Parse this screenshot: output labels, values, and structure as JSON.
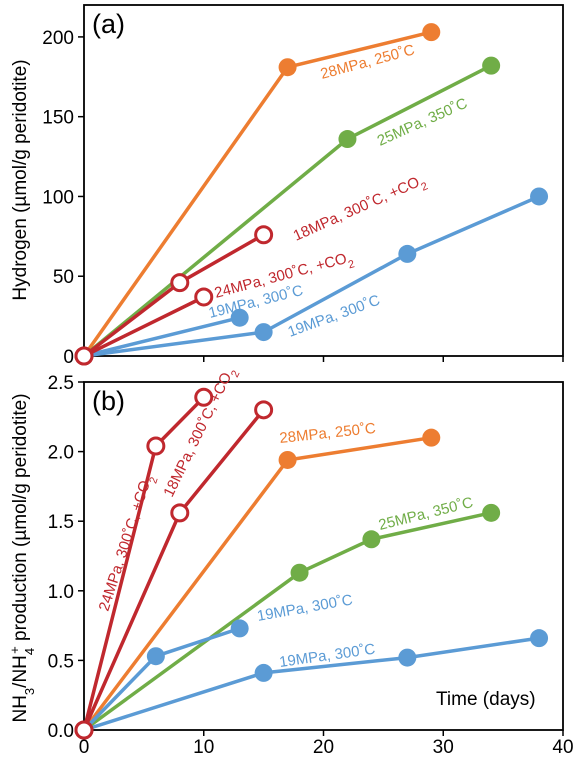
{
  "colors": {
    "orange": "#ED7D31",
    "green": "#70AD47",
    "blue": "#5B9BD5",
    "red": "#C0282E"
  },
  "chart_data": [
    {
      "type": "line",
      "panel_label": "(a)",
      "ylabel": "Hydrogen (µmol/g peridotite)",
      "xlabel": "",
      "xlim": [
        0,
        40
      ],
      "ylim": [
        0,
        220
      ],
      "yticks": [
        "0",
        "50",
        "100",
        "150",
        "200"
      ],
      "series": [
        {
          "name": "28MPa, 250˚C",
          "color": "#ED7D31",
          "filled": true,
          "x": [
            0,
            17,
            29
          ],
          "y": [
            0,
            181,
            203
          ]
        },
        {
          "name": "25MPa, 350˚C",
          "color": "#70AD47",
          "filled": true,
          "x": [
            0,
            22,
            34
          ],
          "y": [
            0,
            136,
            182
          ]
        },
        {
          "name": "19MPa, 300˚C",
          "color": "#5B9BD5",
          "filled": true,
          "x": [
            0,
            13
          ],
          "y": [
            0,
            24
          ]
        },
        {
          "name": "19MPa, 300˚C",
          "color": "#5B9BD5",
          "filled": true,
          "x": [
            0,
            15,
            27,
            38
          ],
          "y": [
            0,
            15,
            64,
            100
          ]
        },
        {
          "name": "24MPa, 300˚C, +CO₂",
          "color": "#C0282E",
          "filled": false,
          "x": [
            0,
            10
          ],
          "y": [
            0,
            37
          ]
        },
        {
          "name": "18MPa, 300˚C, +CO₂",
          "color": "#C0282E",
          "filled": false,
          "x": [
            0,
            8,
            15
          ],
          "y": [
            0,
            46,
            76
          ]
        }
      ]
    },
    {
      "type": "line",
      "panel_label": "(b)",
      "ylabel": "NH₃/NH₄⁺ production (µmol/g peridotite)",
      "xlabel": "Time (days)",
      "xlim": [
        0,
        40
      ],
      "ylim": [
        0,
        2.5
      ],
      "xticks": [
        "0",
        "10",
        "20",
        "30",
        "40"
      ],
      "yticks": [
        "0.0",
        "0.5",
        "1.0",
        "1.5",
        "2.0",
        "2.5"
      ],
      "series": [
        {
          "name": "28MPa, 250˚C",
          "color": "#ED7D31",
          "filled": true,
          "x": [
            0,
            17,
            29
          ],
          "y": [
            0,
            1.94,
            2.1
          ]
        },
        {
          "name": "25MPa, 350˚C",
          "color": "#70AD47",
          "filled": true,
          "x": [
            0,
            18,
            24,
            34
          ],
          "y": [
            0,
            1.13,
            1.37,
            1.56
          ]
        },
        {
          "name": "19MPa, 300˚C",
          "color": "#5B9BD5",
          "filled": true,
          "x": [
            0,
            6,
            13
          ],
          "y": [
            0,
            0.53,
            0.73
          ]
        },
        {
          "name": "19MPa, 300˚C",
          "color": "#5B9BD5",
          "filled": true,
          "x": [
            0,
            15,
            27,
            38
          ],
          "y": [
            0,
            0.41,
            0.52,
            0.66
          ]
        },
        {
          "name": "24MPa, 300˚C, +CO₂",
          "color": "#C0282E",
          "filled": false,
          "x": [
            0,
            6,
            10
          ],
          "y": [
            0,
            2.04,
            2.39
          ]
        },
        {
          "name": "18MPa, 300˚C, +CO₂",
          "color": "#C0282E",
          "filled": false,
          "x": [
            0,
            8,
            15
          ],
          "y": [
            0,
            1.56,
            2.3
          ]
        }
      ]
    }
  ]
}
